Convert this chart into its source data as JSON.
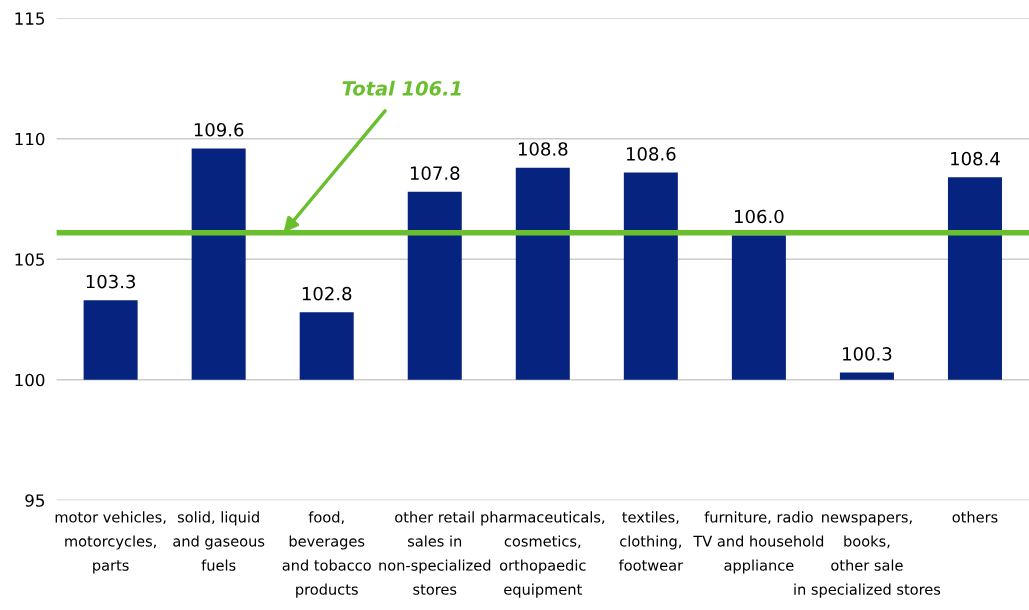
{
  "chart_data": {
    "type": "bar",
    "categories": [
      "motor vehicles,\nmotorcycles,\nparts",
      "solid, liquid\nand gaseous\nfuels",
      "food,\nbeverages\nand tobacco\nproducts",
      "other retail\nsales in\nnon-specialized\nstores",
      "pharmaceuticals,\ncosmetics,\northopaedic\nequipment",
      "textiles,\nclothing,\nfootwear",
      "furniture, radio\nTV and household\nappliance",
      "newspapers,\nbooks,\nother sale\nin specialized stores",
      "others"
    ],
    "base": [
      100,
      100,
      100,
      100,
      100,
      100,
      100,
      100,
      100
    ],
    "values": [
      3.3,
      9.6,
      2.8,
      7.8,
      8.8,
      8.6,
      6.0,
      0.3,
      8.4
    ],
    "value_labels": [
      "103.3",
      "109.6",
      "102.8",
      "107.8",
      "108.8",
      "108.6",
      "106.0",
      "100.3",
      "108.4"
    ],
    "color": "#06237f",
    "ylim": [
      95,
      115
    ],
    "yticks": [
      95,
      100,
      105,
      110,
      115
    ],
    "grid": "y",
    "legend": false,
    "ref_lines": [
      {
        "axis": "y",
        "value": 106.1,
        "label": "Total 106.1",
        "color": "#6abf2e"
      }
    ]
  }
}
